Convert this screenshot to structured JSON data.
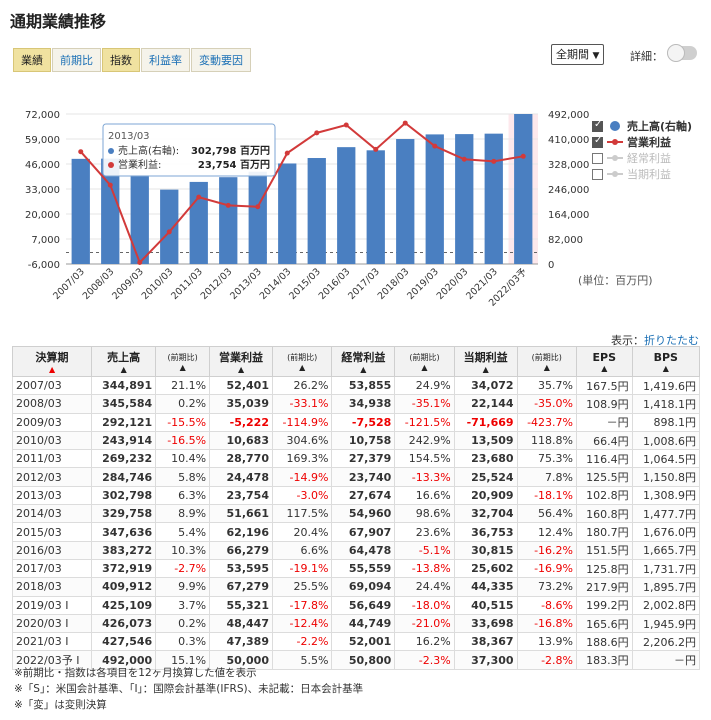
{
  "page_title": "通期業績推移",
  "tabs": [
    {
      "label": "業績",
      "active": true
    },
    {
      "label": "前期比",
      "active": false
    },
    {
      "label": "指数",
      "active": true
    },
    {
      "label": "利益率",
      "active": false
    },
    {
      "label": "変動要因",
      "active": false
    }
  ],
  "period_select": {
    "value": "全期間"
  },
  "detail_label": "詳細：",
  "chart_data": {
    "type": "bar",
    "categories": [
      "2007/03",
      "2008/03",
      "2009/03",
      "2010/03",
      "2011/03",
      "2012/03",
      "2013/03",
      "2014/03",
      "2015/03",
      "2016/03",
      "2017/03",
      "2018/03",
      "2019/03",
      "2020/03",
      "2021/03",
      "2022/03予"
    ],
    "series": [
      {
        "name": "売上高(右軸)",
        "type": "bar",
        "axis": "right",
        "values": [
          344891,
          345584,
          292121,
          243914,
          269232,
          284746,
          302798,
          329758,
          347636,
          383272,
          372919,
          409912,
          425109,
          426073,
          427546,
          492000
        ]
      },
      {
        "name": "営業利益",
        "type": "line",
        "axis": "left",
        "values": [
          52401,
          35039,
          -5222,
          10683,
          28770,
          24478,
          23754,
          51661,
          62196,
          66279,
          53595,
          67279,
          55321,
          48447,
          47389,
          50000
        ]
      }
    ],
    "left_axis": {
      "ticks": [
        "72,000",
        "59,000",
        "46,000",
        "33,000",
        "20,000",
        "7,000",
        "-6,000"
      ],
      "range": [
        -6000,
        72000
      ]
    },
    "right_axis": {
      "ticks": [
        "492,000",
        "410,000",
        "328,000",
        "246,000",
        "164,000",
        "82,000",
        "0"
      ],
      "range": [
        0,
        492000
      ]
    },
    "legend": [
      {
        "label": "売上高(右軸)",
        "checked": true,
        "enabled": true
      },
      {
        "label": "営業利益",
        "checked": true,
        "enabled": true
      },
      {
        "label": "経常利益",
        "checked": false,
        "enabled": false
      },
      {
        "label": "当期利益",
        "checked": false,
        "enabled": false
      }
    ],
    "tooltip": {
      "period": "2013/03",
      "rows": [
        {
          "label": "売上高(右軸)",
          "value": "302,798",
          "unit": "百万円"
        },
        {
          "label": "営業利益",
          "value": "23,754",
          "unit": "百万円"
        }
      ]
    },
    "unit_label": "(単位：百万円)",
    "colors": {
      "bar": "#4a7fc1",
      "line": "#d23a3a",
      "forecast_band": "#fde8ec"
    }
  },
  "display": {
    "label": "表示：",
    "link": "折りたたむ"
  },
  "table": {
    "headers": [
      "決算期",
      "売上高",
      "(前期比)",
      "営業利益",
      "(前期比)",
      "経常利益",
      "(前期比)",
      "当期利益",
      "(前期比)",
      "EPS",
      "BPS"
    ],
    "rows": [
      [
        "2007/03",
        "344,891",
        "21.1%",
        "52,401",
        "26.2%",
        "53,855",
        "24.9%",
        "34,072",
        "35.7%",
        "167.5円",
        "1,419.6円"
      ],
      [
        "2008/03",
        "345,584",
        "0.2%",
        "35,039",
        "-33.1%",
        "34,938",
        "-35.1%",
        "22,144",
        "-35.0%",
        "108.9円",
        "1,418.1円"
      ],
      [
        "2009/03",
        "292,121",
        "-15.5%",
        "-5,222",
        "-114.9%",
        "-7,528",
        "-121.5%",
        "-71,669",
        "-423.7%",
        "－円",
        "898.1円"
      ],
      [
        "2010/03",
        "243,914",
        "-16.5%",
        "10,683",
        "304.6%",
        "10,758",
        "242.9%",
        "13,509",
        "118.8%",
        "66.4円",
        "1,008.6円"
      ],
      [
        "2011/03",
        "269,232",
        "10.4%",
        "28,770",
        "169.3%",
        "27,379",
        "154.5%",
        "23,680",
        "75.3%",
        "116.4円",
        "1,064.5円"
      ],
      [
        "2012/03",
        "284,746",
        "5.8%",
        "24,478",
        "-14.9%",
        "23,740",
        "-13.3%",
        "25,524",
        "7.8%",
        "125.5円",
        "1,150.8円"
      ],
      [
        "2013/03",
        "302,798",
        "6.3%",
        "23,754",
        "-3.0%",
        "27,674",
        "16.6%",
        "20,909",
        "-18.1%",
        "102.8円",
        "1,308.9円"
      ],
      [
        "2014/03",
        "329,758",
        "8.9%",
        "51,661",
        "117.5%",
        "54,960",
        "98.6%",
        "32,704",
        "56.4%",
        "160.8円",
        "1,477.7円"
      ],
      [
        "2015/03",
        "347,636",
        "5.4%",
        "62,196",
        "20.4%",
        "67,907",
        "23.6%",
        "36,753",
        "12.4%",
        "180.7円",
        "1,676.0円"
      ],
      [
        "2016/03",
        "383,272",
        "10.3%",
        "66,279",
        "6.6%",
        "64,478",
        "-5.1%",
        "30,815",
        "-16.2%",
        "151.5円",
        "1,665.7円"
      ],
      [
        "2017/03",
        "372,919",
        "-2.7%",
        "53,595",
        "-19.1%",
        "55,559",
        "-13.8%",
        "25,602",
        "-16.9%",
        "125.8円",
        "1,731.7円"
      ],
      [
        "2018/03",
        "409,912",
        "9.9%",
        "67,279",
        "25.5%",
        "69,094",
        "24.4%",
        "44,335",
        "73.2%",
        "217.9円",
        "1,895.7円"
      ],
      [
        "2019/03 I",
        "425,109",
        "3.7%",
        "55,321",
        "-17.8%",
        "56,649",
        "-18.0%",
        "40,515",
        "-8.6%",
        "199.2円",
        "2,002.8円"
      ],
      [
        "2020/03 I",
        "426,073",
        "0.2%",
        "48,447",
        "-12.4%",
        "44,749",
        "-21.0%",
        "33,698",
        "-16.8%",
        "165.6円",
        "1,945.9円"
      ],
      [
        "2021/03 I",
        "427,546",
        "0.3%",
        "47,389",
        "-2.2%",
        "52,001",
        "16.2%",
        "38,367",
        "13.9%",
        "188.6円",
        "2,206.2円"
      ],
      [
        "2022/03予 I",
        "492,000",
        "15.1%",
        "50,000",
        "5.5%",
        "50,800",
        "-2.3%",
        "37,300",
        "-2.8%",
        "183.3円",
        "－円"
      ]
    ]
  },
  "footnotes": [
    "※前期比・指数は各項目を12ヶ月換算した値を表示",
    "※「S」：米国会計基準、「I」：国際会計基準(IFRS)、未記載：日本会計基準",
    "※「変」は変則決算"
  ]
}
